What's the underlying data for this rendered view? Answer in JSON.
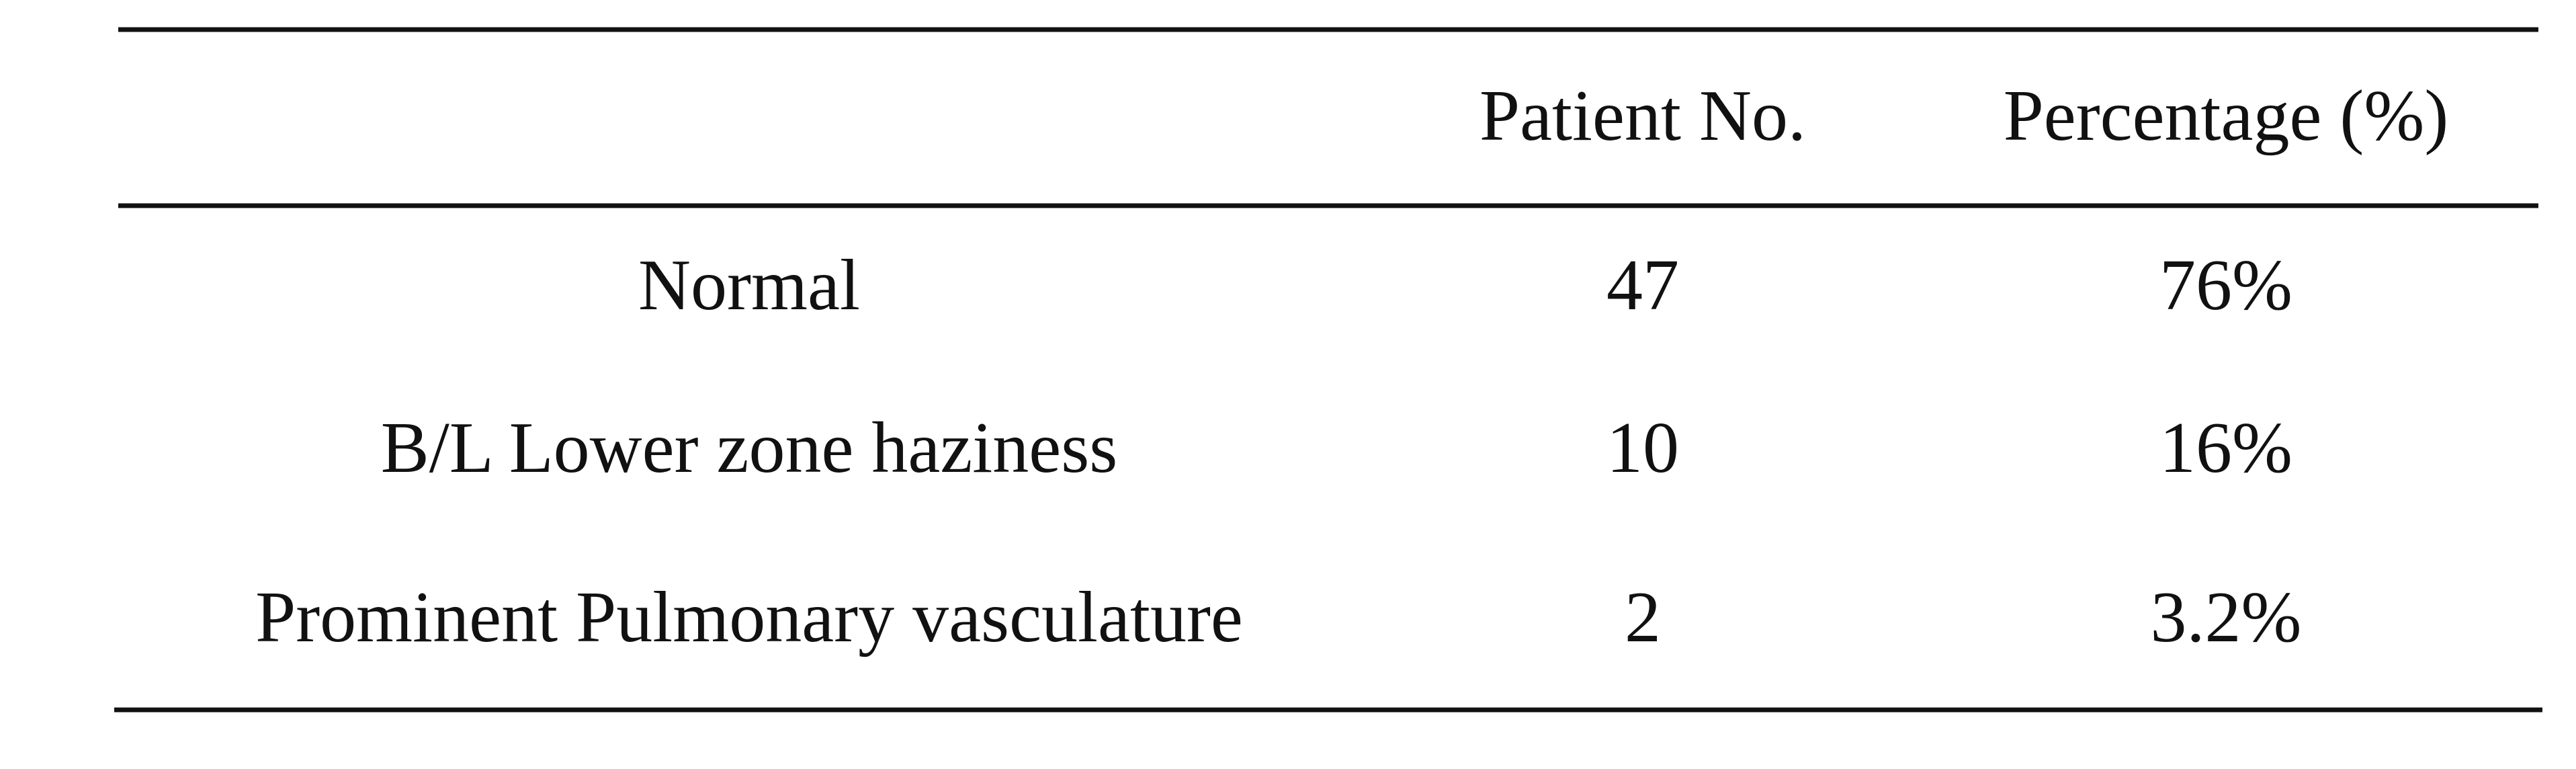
{
  "table": {
    "columns": [
      "Patient No.",
      "Percentage (%)"
    ],
    "rows": [
      [
        "Normal",
        "47",
        "76%"
      ],
      [
        "B/L Lower zone haziness",
        "10",
        "16%"
      ],
      [
        "Prominent Pulmonary vasculature",
        "2",
        "3.2%"
      ]
    ]
  }
}
